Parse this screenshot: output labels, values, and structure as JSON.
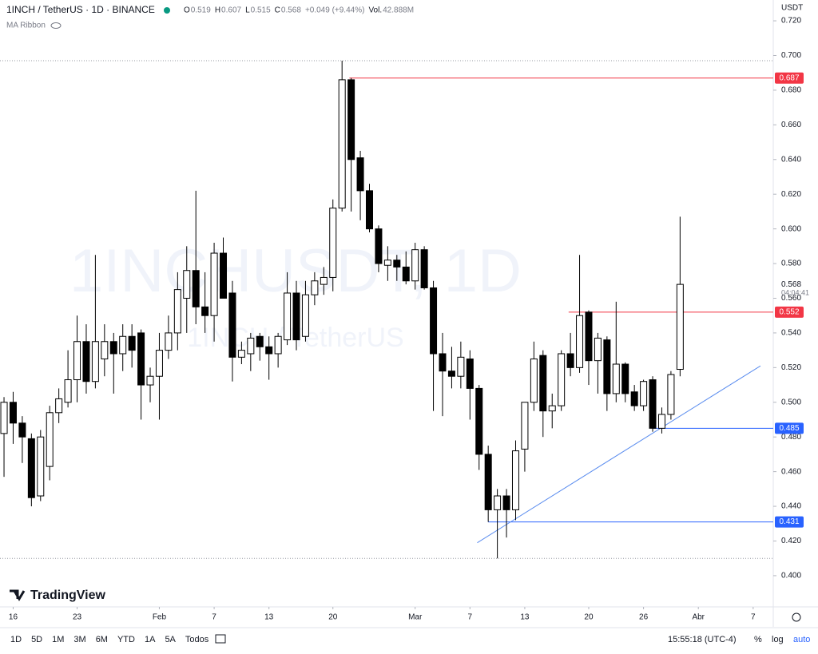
{
  "chart_data": {
    "type": "candlestick",
    "symbol": "1INCH / TetherUS · 1D · BINANCE",
    "legend": [
      {
        "label": "O",
        "value": "0.519"
      },
      {
        "label": "H",
        "value": "0.607"
      },
      {
        "label": "L",
        "value": "0.515"
      },
      {
        "label": "C",
        "value": "0.568"
      },
      {
        "label": "",
        "value": "+0.049 (+9.44%)"
      },
      {
        "label": "Vol.",
        "value": "42.888M"
      }
    ],
    "indicator": "MA Ribbon",
    "watermark": "1INCHUSDT, 1D",
    "watermark_sub": "1INCH / TetherUS",
    "currency": "USDT",
    "up_color": "#ffffff",
    "down_color": "#000000",
    "open": [
      0.482,
      0.5,
      0.488,
      0.479,
      0.446,
      0.463,
      0.494,
      0.5,
      0.513,
      0.535,
      0.512,
      0.525,
      0.535,
      0.528,
      0.538,
      0.54,
      0.51,
      0.515,
      0.53,
      0.54,
      0.56,
      0.576,
      0.555,
      0.55,
      0.586,
      0.563,
      0.526,
      0.528,
      0.538,
      0.532,
      0.528,
      0.536,
      0.563,
      0.538,
      0.562,
      0.568,
      0.572,
      0.612,
      0.686,
      0.641,
      0.622,
      0.6,
      0.579,
      0.582,
      0.578,
      0.57,
      0.588,
      0.566,
      0.528,
      0.518,
      0.515,
      0.525,
      0.508,
      0.47,
      0.438,
      0.446,
      0.438,
      0.473,
      0.5,
      0.527,
      0.495,
      0.498,
      0.528,
      0.52,
      0.552,
      0.524,
      0.536,
      0.505,
      0.522,
      0.506,
      0.498,
      0.513,
      0.485,
      0.493,
      0.519
    ],
    "high": [
      0.503,
      0.506,
      0.492,
      0.482,
      0.484,
      0.498,
      0.508,
      0.53,
      0.55,
      0.545,
      0.585,
      0.545,
      0.54,
      0.545,
      0.545,
      0.542,
      0.52,
      0.54,
      0.55,
      0.575,
      0.59,
      0.622,
      0.575,
      0.592,
      0.595,
      0.57,
      0.535,
      0.54,
      0.54,
      0.538,
      0.54,
      0.575,
      0.57,
      0.57,
      0.575,
      0.578,
      0.617,
      0.697,
      0.687,
      0.645,
      0.626,
      0.602,
      0.59,
      0.585,
      0.587,
      0.592,
      0.59,
      0.57,
      0.54,
      0.532,
      0.535,
      0.53,
      0.51,
      0.475,
      0.45,
      0.45,
      0.478,
      0.5,
      0.535,
      0.53,
      0.505,
      0.53,
      0.54,
      0.585,
      0.553,
      0.54,
      0.538,
      0.558,
      0.523,
      0.51,
      0.513,
      0.515,
      0.497,
      0.518,
      0.607
    ],
    "low": [
      0.457,
      0.476,
      0.465,
      0.44,
      0.443,
      0.455,
      0.488,
      0.497,
      0.5,
      0.505,
      0.508,
      0.515,
      0.505,
      0.518,
      0.52,
      0.49,
      0.5,
      0.49,
      0.525,
      0.53,
      0.54,
      0.545,
      0.54,
      0.535,
      0.56,
      0.512,
      0.522,
      0.518,
      0.524,
      0.513,
      0.52,
      0.533,
      0.53,
      0.535,
      0.556,
      0.562,
      0.564,
      0.61,
      0.61,
      0.605,
      0.598,
      0.575,
      0.57,
      0.57,
      0.568,
      0.565,
      0.565,
      0.495,
      0.492,
      0.508,
      0.508,
      0.49,
      0.461,
      0.431,
      0.41,
      0.422,
      0.432,
      0.46,
      0.495,
      0.48,
      0.485,
      0.495,
      0.515,
      0.517,
      0.51,
      0.505,
      0.495,
      0.5,
      0.5,
      0.495,
      0.495,
      0.483,
      0.482,
      0.49,
      0.515
    ],
    "close": [
      0.5,
      0.488,
      0.48,
      0.445,
      0.48,
      0.494,
      0.502,
      0.513,
      0.535,
      0.512,
      0.535,
      0.535,
      0.528,
      0.538,
      0.53,
      0.51,
      0.515,
      0.53,
      0.54,
      0.565,
      0.576,
      0.555,
      0.55,
      0.586,
      0.56,
      0.526,
      0.53,
      0.537,
      0.532,
      0.528,
      0.538,
      0.563,
      0.536,
      0.562,
      0.57,
      0.572,
      0.612,
      0.686,
      0.64,
      0.622,
      0.6,
      0.58,
      0.582,
      0.578,
      0.57,
      0.588,
      0.566,
      0.528,
      0.518,
      0.515,
      0.526,
      0.508,
      0.47,
      0.438,
      0.446,
      0.438,
      0.472,
      0.5,
      0.525,
      0.495,
      0.498,
      0.528,
      0.52,
      0.55,
      0.524,
      0.537,
      0.505,
      0.522,
      0.505,
      0.498,
      0.512,
      0.485,
      0.493,
      0.516,
      0.568
    ],
    "xlim": [
      -0.44,
      84.2
    ],
    "xticks": [
      {
        "value": 1,
        "label": "16"
      },
      {
        "value": 8,
        "label": "23"
      },
      {
        "value": 17,
        "label": "Feb"
      },
      {
        "value": 23,
        "label": "7"
      },
      {
        "value": 29,
        "label": "13"
      },
      {
        "value": 36,
        "label": "20"
      },
      {
        "value": 45,
        "label": "Mar"
      },
      {
        "value": 51,
        "label": "7"
      },
      {
        "value": 57,
        "label": "13"
      },
      {
        "value": 64,
        "label": "20"
      },
      {
        "value": 70,
        "label": "26"
      },
      {
        "value": 76,
        "label": "Abr"
      },
      {
        "value": 82,
        "label": "7"
      }
    ],
    "ylim": [
      0.382,
      0.732
    ],
    "yticks": [
      {
        "value": 0.4,
        "label": "0.400"
      },
      {
        "value": 0.42,
        "label": "0.420"
      },
      {
        "value": 0.44,
        "label": "0.440"
      },
      {
        "value": 0.46,
        "label": "0.460"
      },
      {
        "value": 0.48,
        "label": "0.480"
      },
      {
        "value": 0.5,
        "label": "0.500"
      },
      {
        "value": 0.52,
        "label": "0.520"
      },
      {
        "value": 0.54,
        "label": "0.540"
      },
      {
        "value": 0.56,
        "label": "0.560"
      },
      {
        "value": 0.58,
        "label": "0.580"
      },
      {
        "value": 0.6,
        "label": "0.600"
      },
      {
        "value": 0.62,
        "label": "0.620"
      },
      {
        "value": 0.64,
        "label": "0.640"
      },
      {
        "value": 0.66,
        "label": "0.660"
      },
      {
        "value": 0.68,
        "label": "0.680"
      },
      {
        "value": 0.7,
        "label": "0.700"
      },
      {
        "value": 0.72,
        "label": "0.720"
      }
    ],
    "levels": [
      {
        "value": 0.687,
        "start": 37.8,
        "color": "#f23645"
      },
      {
        "value": 0.552,
        "start": 61.8,
        "color": "#f23645"
      },
      {
        "value": 0.485,
        "start": 71,
        "color": "#2962ff"
      },
      {
        "value": 0.431,
        "start": 53,
        "color": "#2962ff"
      }
    ],
    "trendline": {
      "x": [
        51.8,
        82.8
      ],
      "y": [
        0.419,
        0.521
      ],
      "color": "#5b8def"
    },
    "last_price": 0.568,
    "countdown": "04:04:41",
    "brand": "TradingView",
    "timeframes": [
      "1D",
      "5D",
      "1M",
      "3M",
      "6M",
      "YTD",
      "1A",
      "5A",
      "Todos"
    ],
    "clock": "15:55:18 (UTC-4)",
    "options": [
      "%",
      "log",
      "auto"
    ]
  }
}
